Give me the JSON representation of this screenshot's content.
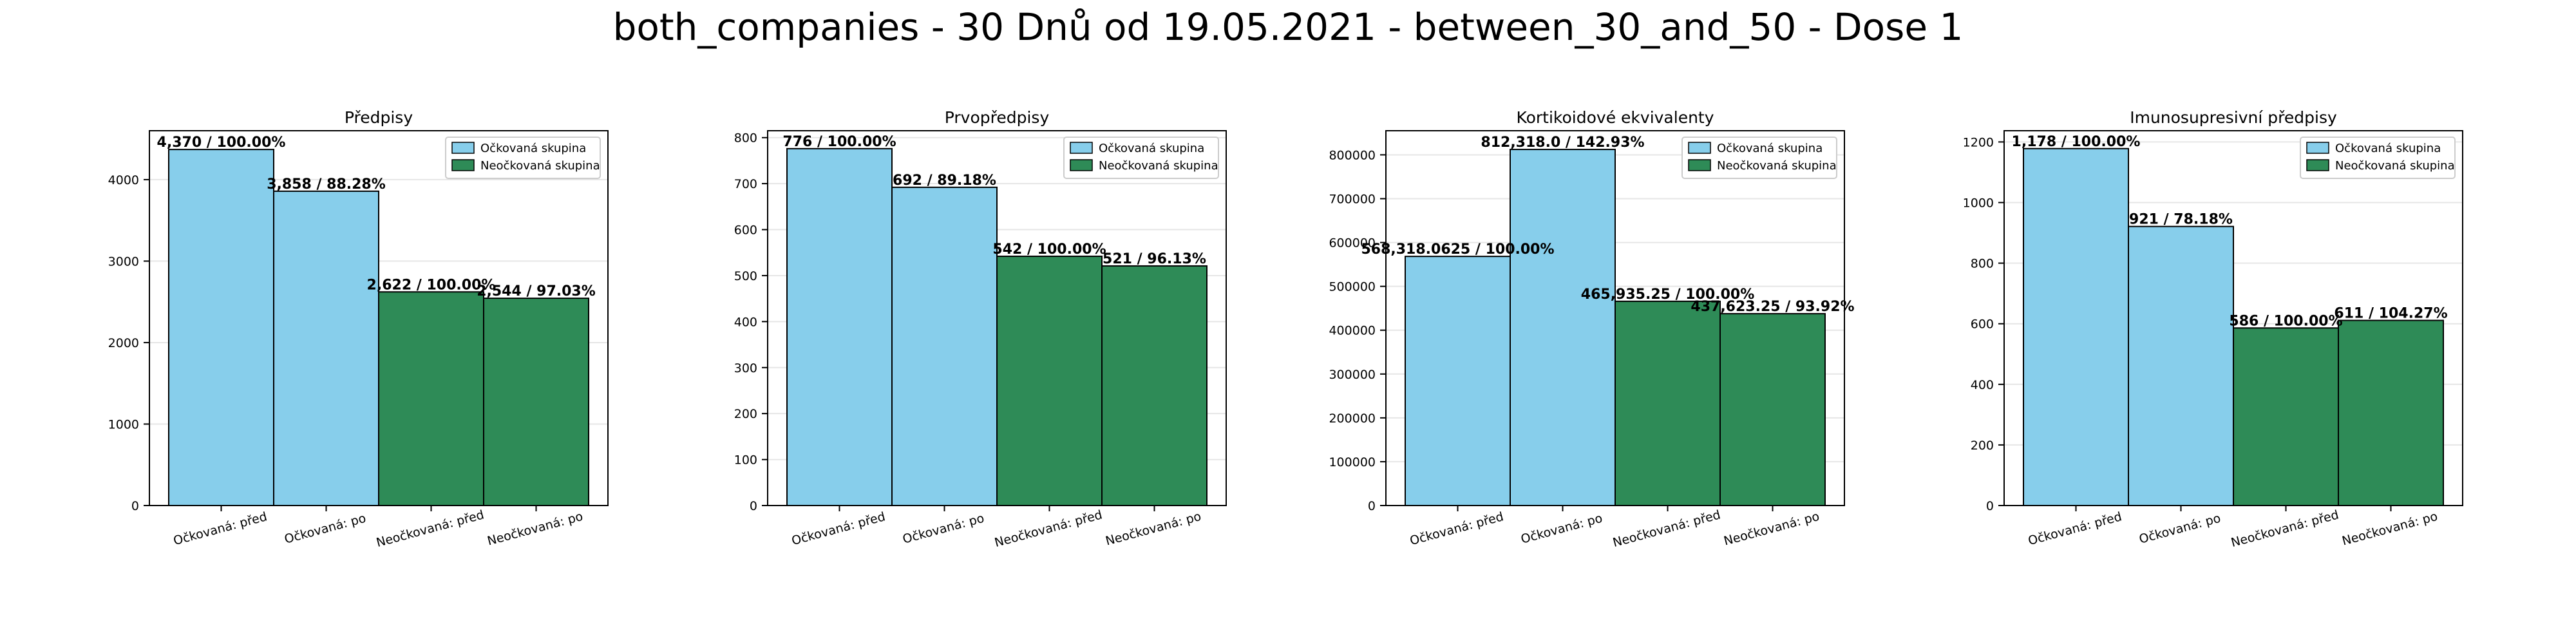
{
  "figure": {
    "title": "both_companies - 30 Dnů od 19.05.2021 - between_30_and_50 - Dose 1"
  },
  "colors": {
    "vaccinated": "#87ceeb",
    "unvaccinated": "#2e8b57",
    "edge": "#000000",
    "grid": "#e6e6e6"
  },
  "legend": {
    "labels": [
      "Očkovaná skupina",
      "Neočkovaná skupina"
    ],
    "position": "top-right"
  },
  "chart_data": [
    {
      "type": "bar",
      "title": "Předpisy",
      "categories": [
        "Očkovaná: před",
        "Očkovaná: po",
        "Neočkovaná: před",
        "Neočkovaná: po"
      ],
      "values": [
        4370,
        3858,
        2622,
        2544
      ],
      "data_labels": [
        "4,370 / 100.00%",
        "3,858 / 88.28%",
        "2,622 / 100.00%",
        "2,544 / 97.03%"
      ],
      "group": [
        "vaccinated",
        "vaccinated",
        "unvaccinated",
        "unvaccinated"
      ],
      "yticks": [
        0,
        1000,
        2000,
        3000,
        4000
      ],
      "ylim": [
        0,
        4600
      ],
      "grid": true
    },
    {
      "type": "bar",
      "title": "Prvopředpisy",
      "categories": [
        "Očkovaná: před",
        "Očkovaná: po",
        "Neočkovaná: před",
        "Neočkovaná: po"
      ],
      "values": [
        776,
        692,
        542,
        521
      ],
      "data_labels": [
        "776 / 100.00%",
        "692 / 89.18%",
        "542 / 100.00%",
        "521 / 96.13%"
      ],
      "group": [
        "vaccinated",
        "vaccinated",
        "unvaccinated",
        "unvaccinated"
      ],
      "yticks": [
        0,
        100,
        200,
        300,
        400,
        500,
        600,
        700,
        800
      ],
      "ylim": [
        0,
        815
      ],
      "grid": true
    },
    {
      "type": "bar",
      "title": "Kortikoidové ekvivalenty",
      "categories": [
        "Očkovaná: před",
        "Očkovaná: po",
        "Neočkovaná: před",
        "Neočkovaná: po"
      ],
      "values": [
        568318.0625,
        812318.0,
        465935.25,
        437623.25
      ],
      "data_labels": [
        "568,318.0625 / 100.00%",
        "812,318.0 / 142.93%",
        "465,935.25 / 100.00%",
        "437,623.25 / 93.92%"
      ],
      "group": [
        "vaccinated",
        "vaccinated",
        "unvaccinated",
        "unvaccinated"
      ],
      "yticks": [
        0,
        100000,
        200000,
        300000,
        400000,
        500000,
        600000,
        700000,
        800000
      ],
      "ylim": [
        0,
        855000
      ],
      "grid": true
    },
    {
      "type": "bar",
      "title": "Imunosupresivní předpisy",
      "categories": [
        "Očkovaná: před",
        "Očkovaná: po",
        "Neočkovaná: před",
        "Neočkovaná: po"
      ],
      "values": [
        1178,
        921,
        586,
        611
      ],
      "data_labels": [
        "1,178 / 100.00%",
        "921 / 78.18%",
        "586 / 100.00%",
        "611 / 104.27%"
      ],
      "group": [
        "vaccinated",
        "vaccinated",
        "unvaccinated",
        "unvaccinated"
      ],
      "yticks": [
        0,
        200,
        400,
        600,
        800,
        1000,
        1200
      ],
      "ylim": [
        0,
        1237
      ],
      "grid": true
    }
  ]
}
